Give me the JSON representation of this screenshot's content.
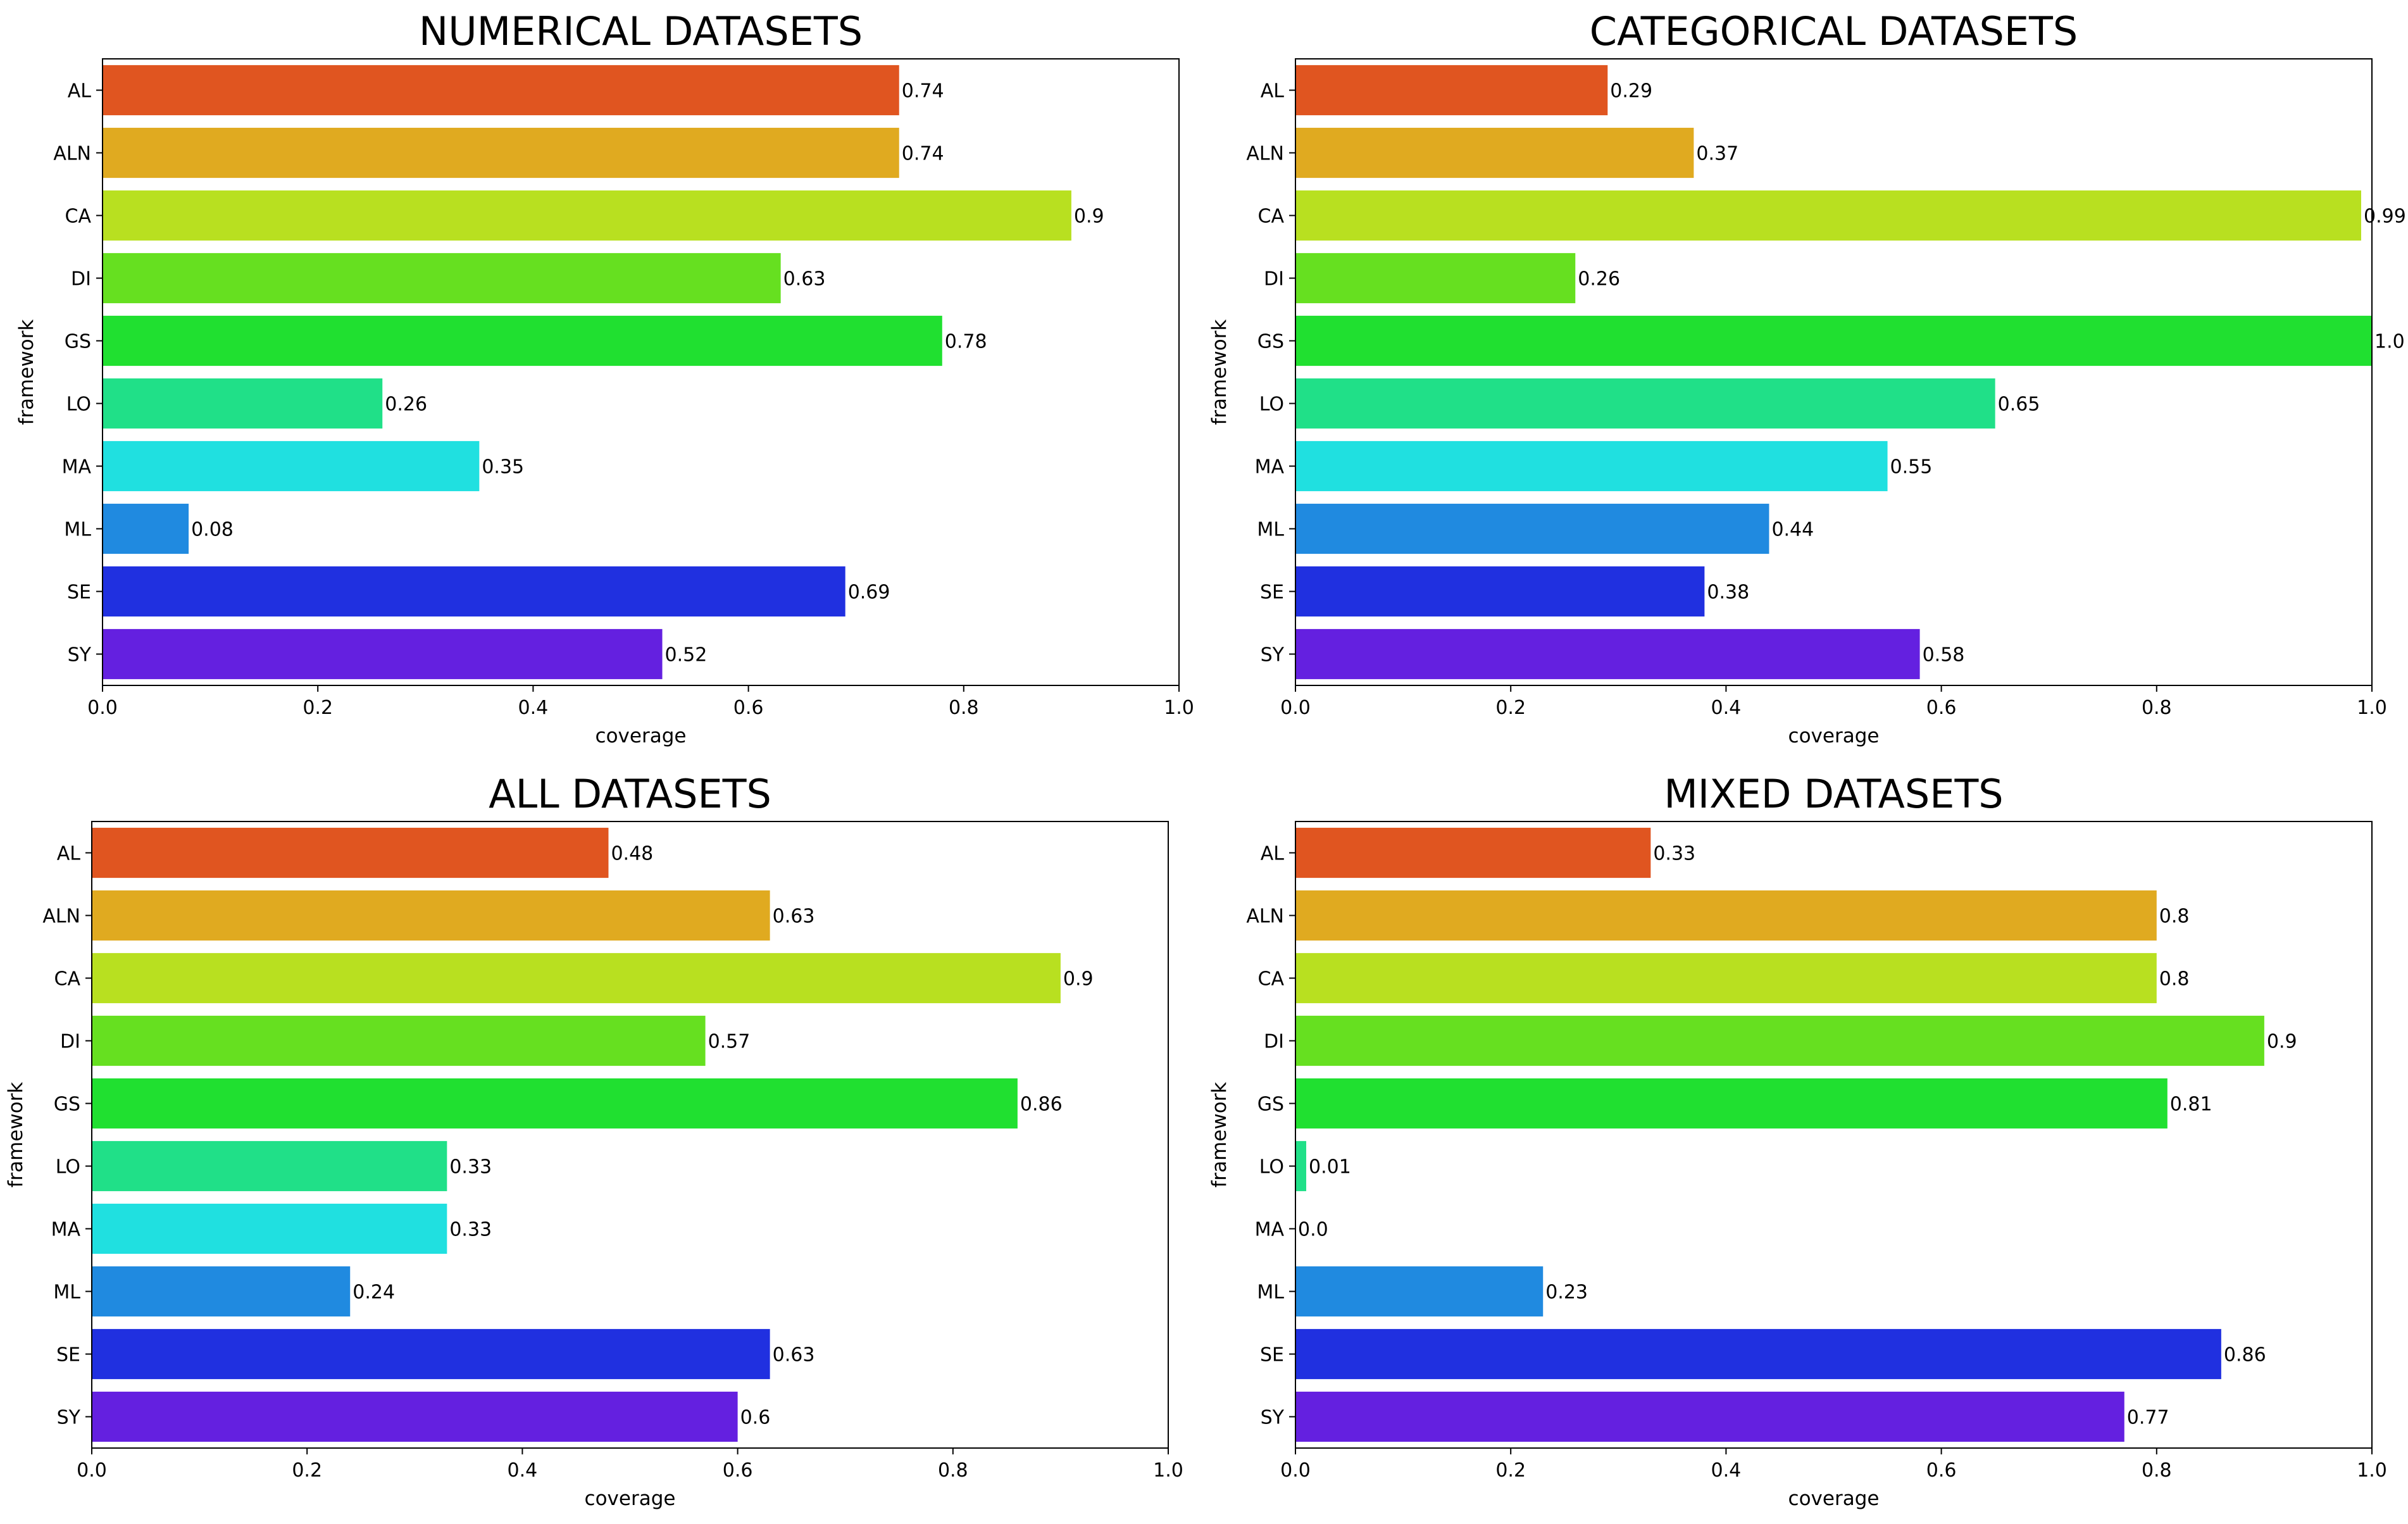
{
  "chart_data": [
    {
      "type": "bar",
      "orientation": "horizontal",
      "title": "NUMERICAL DATASETS",
      "xlabel": "coverage",
      "ylabel": "framework",
      "xlim": [
        0,
        1.0
      ],
      "xticks": [
        "0.0",
        "0.2",
        "0.4",
        "0.6",
        "0.8",
        "1.0"
      ],
      "categories": [
        "AL",
        "ALN",
        "CA",
        "DI",
        "GS",
        "LO",
        "MA",
        "ML",
        "SE",
        "SY"
      ],
      "values": [
        0.74,
        0.74,
        0.9,
        0.63,
        0.78,
        0.26,
        0.35,
        0.08,
        0.69,
        0.52
      ],
      "value_labels": [
        "0.74",
        "0.74",
        "0.9",
        "0.63",
        "0.78",
        "0.26",
        "0.35",
        "0.08",
        "0.69",
        "0.52"
      ]
    },
    {
      "type": "bar",
      "orientation": "horizontal",
      "title": "CATEGORICAL DATASETS",
      "xlabel": "coverage",
      "ylabel": "framework",
      "xlim": [
        0,
        1.0
      ],
      "xticks": [
        "0.0",
        "0.2",
        "0.4",
        "0.6",
        "0.8",
        "1.0"
      ],
      "categories": [
        "AL",
        "ALN",
        "CA",
        "DI",
        "GS",
        "LO",
        "MA",
        "ML",
        "SE",
        "SY"
      ],
      "values": [
        0.29,
        0.37,
        0.99,
        0.26,
        1.0,
        0.65,
        0.55,
        0.44,
        0.38,
        0.58
      ],
      "value_labels": [
        "0.29",
        "0.37",
        "0.99",
        "0.26",
        "1.0",
        "0.65",
        "0.55",
        "0.44",
        "0.38",
        "0.58"
      ]
    },
    {
      "type": "bar",
      "orientation": "horizontal",
      "title": "ALL DATASETS",
      "xlabel": "coverage",
      "ylabel": "framework",
      "xlim": [
        0,
        1.0
      ],
      "xticks": [
        "0.0",
        "0.2",
        "0.4",
        "0.6",
        "0.8",
        "1.0"
      ],
      "categories": [
        "AL",
        "ALN",
        "CA",
        "DI",
        "GS",
        "LO",
        "MA",
        "ML",
        "SE",
        "SY"
      ],
      "values": [
        0.48,
        0.63,
        0.9,
        0.57,
        0.86,
        0.33,
        0.33,
        0.24,
        0.63,
        0.6
      ],
      "value_labels": [
        "0.48",
        "0.63",
        "0.9",
        "0.57",
        "0.86",
        "0.33",
        "0.33",
        "0.24",
        "0.63",
        "0.6"
      ]
    },
    {
      "type": "bar",
      "orientation": "horizontal",
      "title": "MIXED DATASETS",
      "xlabel": "coverage",
      "ylabel": "framework",
      "xlim": [
        0,
        1.0
      ],
      "xticks": [
        "0.0",
        "0.2",
        "0.4",
        "0.6",
        "0.8",
        "1.0"
      ],
      "categories": [
        "AL",
        "ALN",
        "CA",
        "DI",
        "GS",
        "LO",
        "MA",
        "ML",
        "SE",
        "SY"
      ],
      "values": [
        0.33,
        0.8,
        0.8,
        0.9,
        0.81,
        0.01,
        0.0,
        0.23,
        0.86,
        0.77
      ],
      "value_labels": [
        "0.33",
        "0.8",
        "0.8",
        "0.9",
        "0.81",
        "0.01",
        "0.0",
        "0.23",
        "0.86",
        "0.77"
      ]
    }
  ],
  "colors": {
    "AL": "#e05520",
    "ALN": "#e0aa20",
    "CA": "#b8e020",
    "DI": "#66e020",
    "GS": "#20e030",
    "LO": "#20e088",
    "MA": "#20e0e0",
    "ML": "#208ae0",
    "SE": "#2030e0",
    "SY": "#6420e0"
  }
}
